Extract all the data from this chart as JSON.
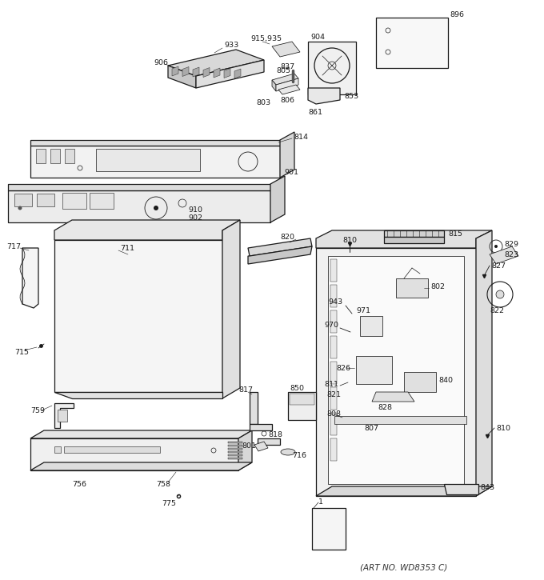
{
  "background_color": "#ffffff",
  "line_color": "#1a1a1a",
  "footer_text": "(ART NO. WD8353 C)",
  "lw_main": 0.9,
  "lw_thin": 0.55,
  "fontsize_label": 6.8
}
